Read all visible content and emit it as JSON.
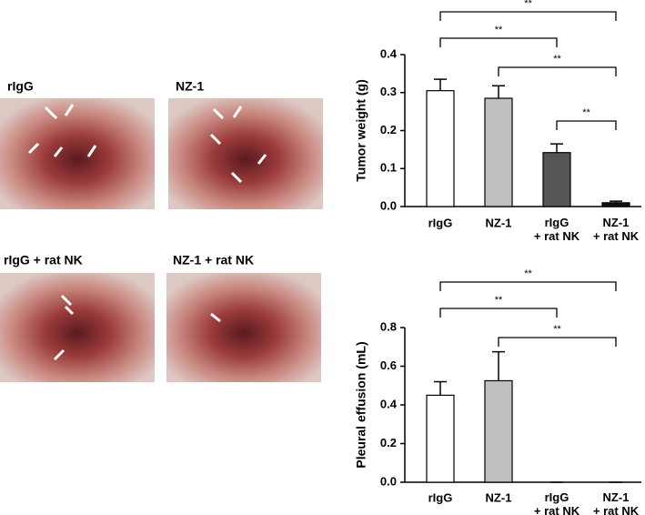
{
  "photo_labels": [
    "rIgG",
    "NZ-1",
    "rIgG + rat NK",
    "NZ-1 + rat NK"
  ],
  "chart_data": [
    {
      "type": "bar",
      "y_label": "Tumor weight (g)",
      "categories": [
        "rIgG",
        "NZ-1",
        "rIgG\n+ rat NK",
        "NZ-1\n+ rat NK"
      ],
      "values": [
        0.305,
        0.285,
        0.142,
        0.01
      ],
      "errors": [
        0.03,
        0.033,
        0.023,
        0.004
      ],
      "colors": [
        "#ffffff",
        "#c0c0c0",
        "#555555",
        "#111111"
      ],
      "ylim": [
        0,
        0.4
      ],
      "yticks": [
        {
          "value": 0,
          "label": "0.0"
        },
        0.1,
        0.2,
        0.3,
        0.4
      ],
      "annotations": [
        {
          "pair": [
            0,
            3
          ],
          "label": "**"
        },
        {
          "pair": [
            0,
            2
          ],
          "label": "**"
        },
        {
          "pair": [
            1,
            3
          ],
          "label": "**"
        },
        {
          "pair": [
            2,
            3
          ],
          "label": "**"
        }
      ]
    },
    {
      "type": "bar",
      "y_label": "Pleural effusion (mL)",
      "categories": [
        "rIgG",
        "NZ-1",
        "rIgG\n+ rat NK",
        "NZ-1\n+ rat NK"
      ],
      "values": [
        0.45,
        0.525,
        0,
        0
      ],
      "errors": [
        0.07,
        0.15,
        0,
        0
      ],
      "colors": [
        "#ffffff",
        "#c0c0c0",
        "#555555",
        "#111111"
      ],
      "ylim": [
        0,
        0.8
      ],
      "yticks": [
        {
          "value": 0,
          "label": "0.0"
        },
        0.2,
        0.4,
        0.6,
        0.8
      ],
      "annotations": [
        {
          "pair": [
            0,
            3
          ],
          "label": "**"
        },
        {
          "pair": [
            0,
            2
          ],
          "label": "**"
        },
        {
          "pair": [
            1,
            3
          ],
          "label": "**"
        }
      ]
    }
  ]
}
